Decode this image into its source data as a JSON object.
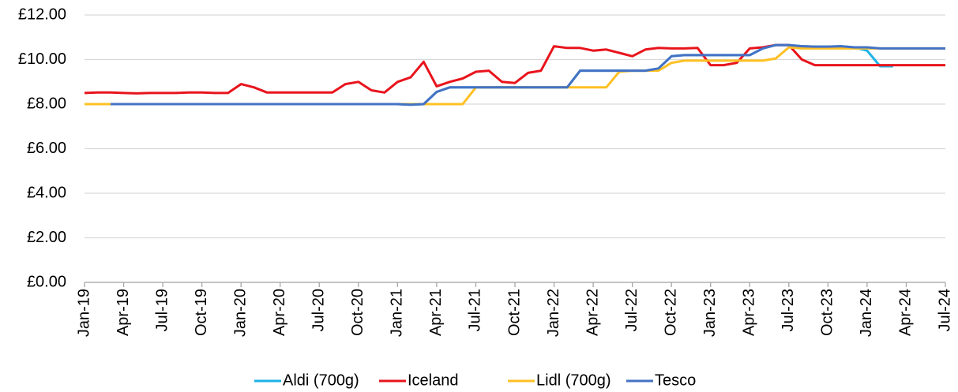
{
  "chart_data": {
    "type": "line",
    "categories": [
      "Jan-19",
      null,
      null,
      "Apr-19",
      null,
      null,
      "Jul-19",
      null,
      null,
      "Oct-19",
      null,
      null,
      "Jan-20",
      null,
      null,
      "Apr-20",
      null,
      null,
      "Jul-20",
      null,
      null,
      "Oct-20",
      null,
      null,
      "Jan-21",
      null,
      null,
      "Apr-21",
      null,
      null,
      "Jul-21",
      null,
      null,
      "Oct-21",
      null,
      null,
      "Jan-22",
      null,
      null,
      "Apr-22",
      null,
      null,
      "Jul-22",
      null,
      null,
      "Oct-22",
      null,
      null,
      "Jan-23",
      null,
      null,
      "Apr-23",
      null,
      null,
      "Jul-23",
      null,
      null,
      "Oct-23",
      null,
      null,
      "Jan-24",
      null,
      null,
      "Apr-24",
      null,
      null,
      "Jul-24"
    ],
    "series": [
      {
        "name": "Aldi (700g)",
        "color": "#1eb2e6",
        "values": [
          null,
          null,
          8,
          8,
          8,
          8,
          8,
          8,
          8,
          8,
          8,
          8,
          8,
          8,
          8,
          8,
          8,
          8,
          8,
          8,
          8,
          8,
          8,
          8,
          8,
          7.97,
          8,
          8.55,
          8.75,
          8.75,
          8.75,
          8.75,
          8.75,
          8.75,
          8.75,
          8.75,
          8.75,
          8.75,
          9.5,
          9.5,
          9.5,
          9.5,
          9.5,
          9.5,
          9.6,
          10.15,
          10.2,
          10.2,
          10.2,
          10.2,
          10.2,
          10.2,
          10.5,
          10.65,
          10.65,
          10.6,
          10.58,
          10.58,
          10.6,
          10.55,
          10.4,
          9.7,
          9.7,
          null,
          null,
          null,
          null
        ]
      },
      {
        "name": "Iceland",
        "color": "#e8141c",
        "values": [
          8.5,
          8.52,
          8.52,
          8.5,
          8.48,
          8.5,
          8.5,
          8.5,
          8.52,
          8.52,
          8.5,
          8.5,
          8.9,
          8.75,
          8.52,
          8.52,
          8.52,
          8.52,
          8.52,
          8.52,
          8.9,
          9.0,
          8.62,
          8.52,
          9.0,
          9.2,
          9.9,
          8.8,
          9.0,
          9.15,
          9.45,
          9.5,
          9.0,
          8.95,
          9.4,
          9.5,
          10.6,
          10.52,
          10.52,
          10.4,
          10.45,
          10.3,
          10.15,
          10.45,
          10.52,
          10.5,
          10.5,
          10.52,
          9.75,
          9.75,
          9.85,
          10.5,
          10.55,
          10.65,
          10.65,
          10.0,
          9.75,
          9.75,
          9.75,
          9.75,
          9.75,
          9.75,
          9.75,
          9.75,
          9.75,
          9.75,
          9.75
        ]
      },
      {
        "name": "Lidl (700g)",
        "color": "#ffc024",
        "values": [
          8,
          8,
          8,
          8,
          8,
          8,
          8,
          8,
          8,
          8,
          8,
          8,
          8,
          8,
          8,
          8,
          8,
          8,
          8,
          8,
          8,
          8,
          8,
          8,
          8,
          8,
          8,
          8,
          8,
          8,
          8.75,
          8.75,
          8.75,
          8.75,
          8.75,
          8.75,
          8.75,
          8.75,
          8.75,
          8.75,
          8.75,
          9.45,
          9.5,
          9.5,
          9.5,
          9.85,
          9.95,
          9.95,
          9.95,
          9.95,
          9.95,
          9.95,
          9.95,
          10.05,
          10.55,
          10.5,
          10.5,
          10.5,
          10.5,
          10.5,
          10.5,
          10.5,
          10.5,
          10.5,
          10.5,
          10.5,
          10.5
        ]
      },
      {
        "name": "Tesco",
        "color": "#4472c4",
        "values": [
          null,
          null,
          8,
          8,
          8,
          8,
          8,
          8,
          8,
          8,
          8,
          8,
          8,
          8,
          8,
          8,
          8,
          8,
          8,
          8,
          8,
          8,
          8,
          8,
          8,
          7.97,
          8,
          8.55,
          8.75,
          8.75,
          8.75,
          8.75,
          8.75,
          8.75,
          8.75,
          8.75,
          8.75,
          8.75,
          9.5,
          9.5,
          9.5,
          9.5,
          9.5,
          9.5,
          9.6,
          10.15,
          10.2,
          10.2,
          10.2,
          10.2,
          10.2,
          10.2,
          10.5,
          10.65,
          10.65,
          10.6,
          10.58,
          10.58,
          10.6,
          10.55,
          10.55,
          10.5,
          10.5,
          10.5,
          10.5,
          10.5,
          10.5
        ]
      }
    ],
    "ylim": [
      0,
      12
    ],
    "yticks": [
      {
        "value": 0,
        "label": "£0.00"
      },
      {
        "value": 2,
        "label": "£2.00"
      },
      {
        "value": 4,
        "label": "£4.00"
      },
      {
        "value": 6,
        "label": "£6.00"
      },
      {
        "value": 8,
        "label": "£8.00"
      },
      {
        "value": 10,
        "label": "£10.00"
      },
      {
        "value": 12,
        "label": "£12.00"
      }
    ],
    "grid": true,
    "legend": "bottom"
  }
}
